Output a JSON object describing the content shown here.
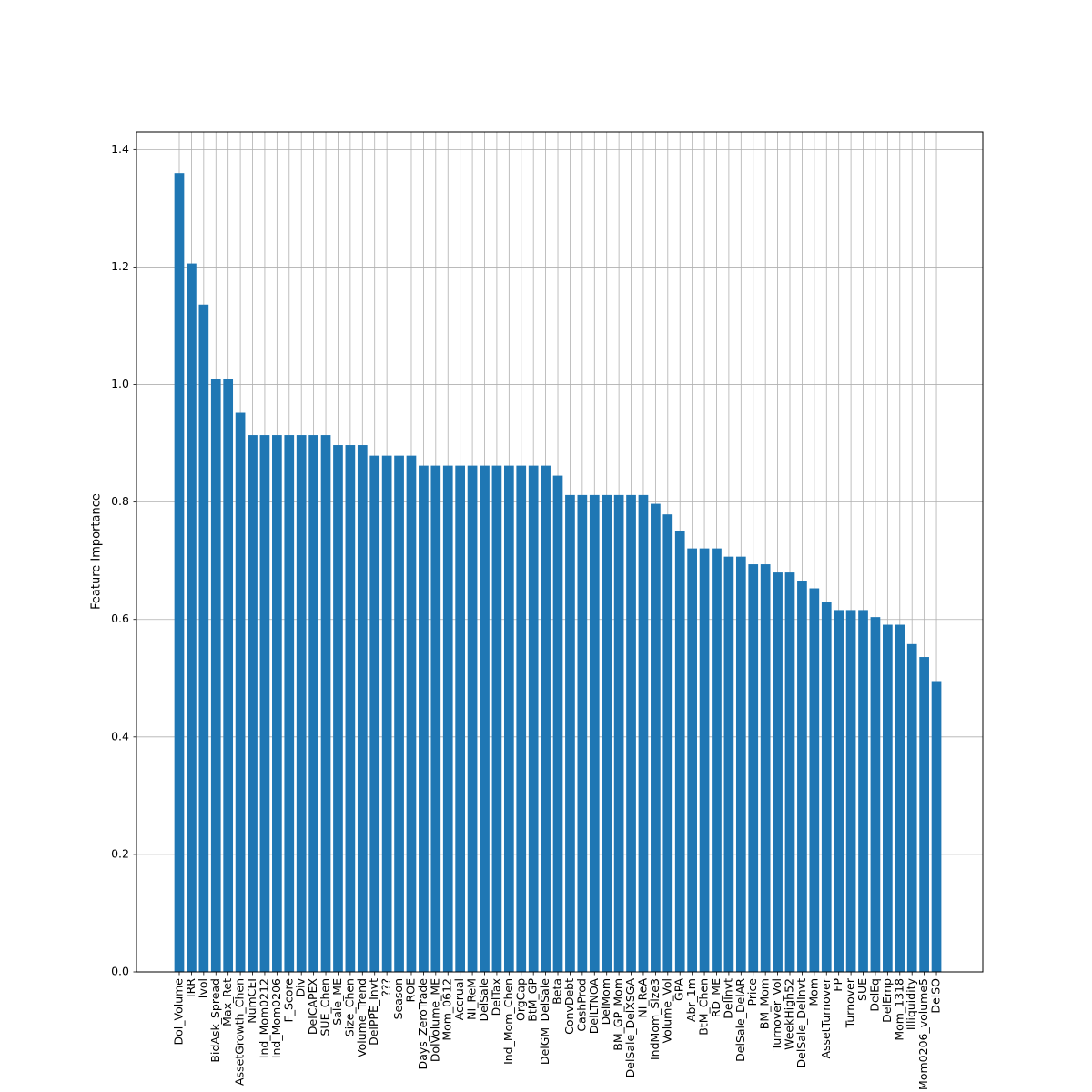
{
  "chart_data": {
    "type": "bar",
    "title": "",
    "xlabel": "",
    "ylabel": "Feature Importance",
    "ylim": [
      0,
      1.43
    ],
    "yticks": [
      0.0,
      0.2,
      0.4,
      0.6,
      0.8,
      1.0,
      1.2,
      1.4
    ],
    "ytick_labels": [
      "0.0",
      "0.2",
      "0.4",
      "0.6",
      "0.8",
      "1.0",
      "1.2",
      "1.4"
    ],
    "grid": true,
    "bar_color": "#1f77b4",
    "categories": [
      "Dol_Volume",
      "IRR",
      "Ivol",
      "BidAsk_Spread",
      "Max_Ret",
      "AssetGrowth_Chen",
      "NumCEI",
      "Ind_Mom0212",
      "Ind_Mom0206",
      "F_Score",
      "Div",
      "DelCAPEX",
      "SUE_Chen",
      "Sale_ME",
      "Size_Chen",
      "Volume_Trend",
      "DelPPE_Invt",
      "???",
      "Season",
      "ROE",
      "Days_ZeroTrade",
      "DolVolume_ME",
      "Mom_0612",
      "Accrual",
      "NI_ReM",
      "DelSale",
      "DelTax",
      "Ind_Mom_Chen",
      "OrgCap",
      "BtM_GP",
      "DelGM_DelSale",
      "Beta",
      "ConvDebt",
      "CashProd",
      "DelLTNOA",
      "DelMom",
      "BM_GP_Mom",
      "DelSale_DelXSGA",
      "NI_ReA",
      "IndMom_Size3",
      "Volume_Vol",
      "GPA",
      "Abr_1m",
      "BtM_Chen",
      "RD_ME",
      "DelInvt",
      "DelSale_DelAR",
      "Price",
      "BM_Mom",
      "Turnover_Vol",
      "WeekHigh52",
      "DelSale_DelInvt",
      "Mom",
      "AssetTurnover",
      "FP",
      "Turnover",
      "SUE",
      "DelEq",
      "DelEmp",
      "Mom_1318",
      "Illiquidity",
      "Mom0206_volume5",
      "DelSO"
    ],
    "values": [
      1.36,
      1.206,
      1.136,
      1.01,
      1.01,
      0.952,
      0.914,
      0.914,
      0.914,
      0.914,
      0.914,
      0.914,
      0.914,
      0.897,
      0.897,
      0.897,
      0.879,
      0.879,
      0.879,
      0.879,
      0.862,
      0.862,
      0.862,
      0.862,
      0.862,
      0.862,
      0.862,
      0.862,
      0.862,
      0.862,
      0.862,
      0.845,
      0.812,
      0.812,
      0.812,
      0.812,
      0.812,
      0.812,
      0.812,
      0.797,
      0.779,
      0.75,
      0.721,
      0.721,
      0.721,
      0.707,
      0.707,
      0.694,
      0.694,
      0.68,
      0.68,
      0.666,
      0.653,
      0.629,
      0.616,
      0.616,
      0.616,
      0.604,
      0.591,
      0.591,
      0.558,
      0.536,
      0.495
    ]
  }
}
